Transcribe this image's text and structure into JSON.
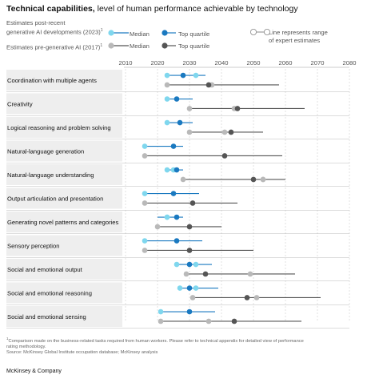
{
  "header": {
    "title_bold": "Technical capabilities,",
    "title_rest": " level of human performance achievable by technology"
  },
  "legend": {
    "post_label_line1": "Estimates post-recent",
    "post_label_line2": "generative AI developments (2023)",
    "post_sup": "1",
    "pre_label": "Estimates pre-generative AI (2017)",
    "pre_sup": "1",
    "median": "Median",
    "top_quartile": "Top quartile",
    "range_line1": "Line represents range",
    "range_line2": "of expert estimates"
  },
  "colors": {
    "post_median": "#7fd7ee",
    "post_top": "#1a79c0",
    "post_line": "#1a79c0",
    "pre_median": "#b9b9b9",
    "pre_top": "#555555",
    "pre_line": "#555555",
    "row_band": "#eeeeee"
  },
  "chart_data": {
    "type": "range-dot",
    "title": "Technical capabilities, level of human performance achievable by technology",
    "xlim": [
      2010,
      2080
    ],
    "xticks": [
      2010,
      2020,
      2030,
      2040,
      2050,
      2060,
      2070,
      2080
    ],
    "grid": true,
    "categories": [
      "Coordination with multiple agents",
      "Creativity",
      "Logical reasoning and problem solving",
      "Natural-language generation",
      "Natural-language understanding",
      "Output articulation and presentation",
      "Generating novel patterns and categories",
      "Sensory perception",
      "Social and emotional output",
      "Social and emotional reasoning",
      "Social and emotional sensing"
    ],
    "series": [
      {
        "name": "Estimates post-recent generative AI developments (2023)",
        "median": [
          2023,
          2023,
          2023,
          2016,
          2023,
          2016,
          2023,
          2016,
          2026,
          2027,
          2021
        ],
        "top_quartile": [
          2028,
          2026,
          2027,
          2025,
          2026,
          2025,
          2026,
          2026,
          2030,
          2030,
          2030
        ],
        "range": [
          [
            2023,
            2035
          ],
          [
            2023,
            2031
          ],
          [
            2023,
            2031
          ],
          [
            2016,
            2028
          ],
          [
            2023,
            2028
          ],
          [
            2016,
            2033
          ],
          [
            2020,
            2028
          ],
          [
            2016,
            2034
          ],
          [
            2026,
            2037
          ],
          [
            2027,
            2039
          ],
          [
            2021,
            2038
          ]
        ],
        "extra_medians": [
          [
            2032
          ],
          [],
          [],
          [],
          [
            2025
          ],
          [],
          [
            2023
          ],
          [],
          [
            2032
          ],
          [
            2032
          ],
          []
        ]
      },
      {
        "name": "Estimates pre-generative AI (2017)",
        "median": [
          2037,
          2044,
          2041,
          2016,
          2053,
          2016,
          2020,
          2016,
          2049,
          2051,
          2036
        ],
        "top_quartile": [
          2036,
          2045,
          2043,
          2041,
          2050,
          2031,
          2030,
          2030,
          2035,
          2048,
          2044
        ],
        "range": [
          [
            2023,
            2058
          ],
          [
            2030,
            2066
          ],
          [
            2030,
            2053
          ],
          [
            2016,
            2059
          ],
          [
            2028,
            2060
          ],
          [
            2016,
            2045
          ],
          [
            2020,
            2040
          ],
          [
            2016,
            2050
          ],
          [
            2029,
            2063
          ],
          [
            2031,
            2071
          ],
          [
            2021,
            2065
          ]
        ],
        "extra_medians": [
          [
            2023
          ],
          [
            2030
          ],
          [
            2030
          ],
          [],
          [
            2028,
            2053
          ],
          [],
          [],
          [],
          [
            2029
          ],
          [
            2031
          ],
          [
            2021
          ]
        ]
      }
    ]
  },
  "footnote": {
    "line1": "Comparison made on the business-related tasks required from human workers. Please refer to technical appendix for detailed view of performance",
    "line2": "rating methodology.",
    "line3": "Source: McKinsey Global Institute occupation database; McKinsey analysis",
    "sup": "1"
  },
  "brand": "McKinsey & Company"
}
